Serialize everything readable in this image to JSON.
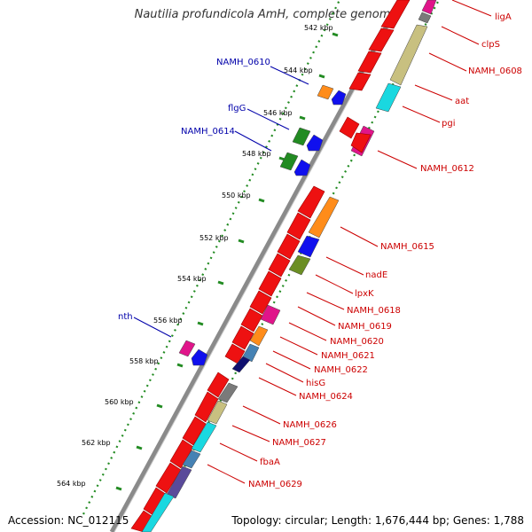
{
  "title": "Nautilia profundicola AmH, complete genome",
  "footer": {
    "accession": "Accession: NC_012115",
    "summary": "Topology: circular; Length: 1,676,444 bp; Genes: 1,788"
  },
  "ticks": [
    "542 kbp",
    "544 kbp",
    "546 kbp",
    "548 kbp",
    "550 kbp",
    "552 kbp",
    "554 kbp",
    "556 kbp",
    "558 kbp",
    "560 kbp",
    "562 kbp",
    "564 kbp"
  ],
  "labels": {
    "left": [
      "NAMH_0610",
      "flgG",
      "NAMH_0614",
      "nth"
    ],
    "right": [
      "ligA",
      "clpS",
      "NAMH_0608",
      "aat",
      "pgi",
      "NAMH_0612",
      "NAMH_0615",
      "nadE",
      "lpxK",
      "NAMH_0618",
      "NAMH_0619",
      "NAMH_0620",
      "NAMH_0621",
      "NAMH_0622",
      "hisG",
      "NAMH_0624",
      "NAMH_0626",
      "NAMH_0627",
      "fbaA",
      "NAMH_0629"
    ]
  },
  "colors": {
    "cds": "#ee1111",
    "orange": "#ff8c1a",
    "blue": "#1010ee",
    "green": "#228b22",
    "olive": "#6b8e23",
    "magenta": "#e0158a",
    "tan": "#c8c080",
    "cyan": "#1ad8e0",
    "steel": "#4682b4",
    "gray": "#7a7a7a",
    "navy": "#101070",
    "purple": "#5a4a9a",
    "backbone": "#808080",
    "tick": "#228b22",
    "label_red": "#cc0000",
    "label_blue": "#0000aa"
  }
}
